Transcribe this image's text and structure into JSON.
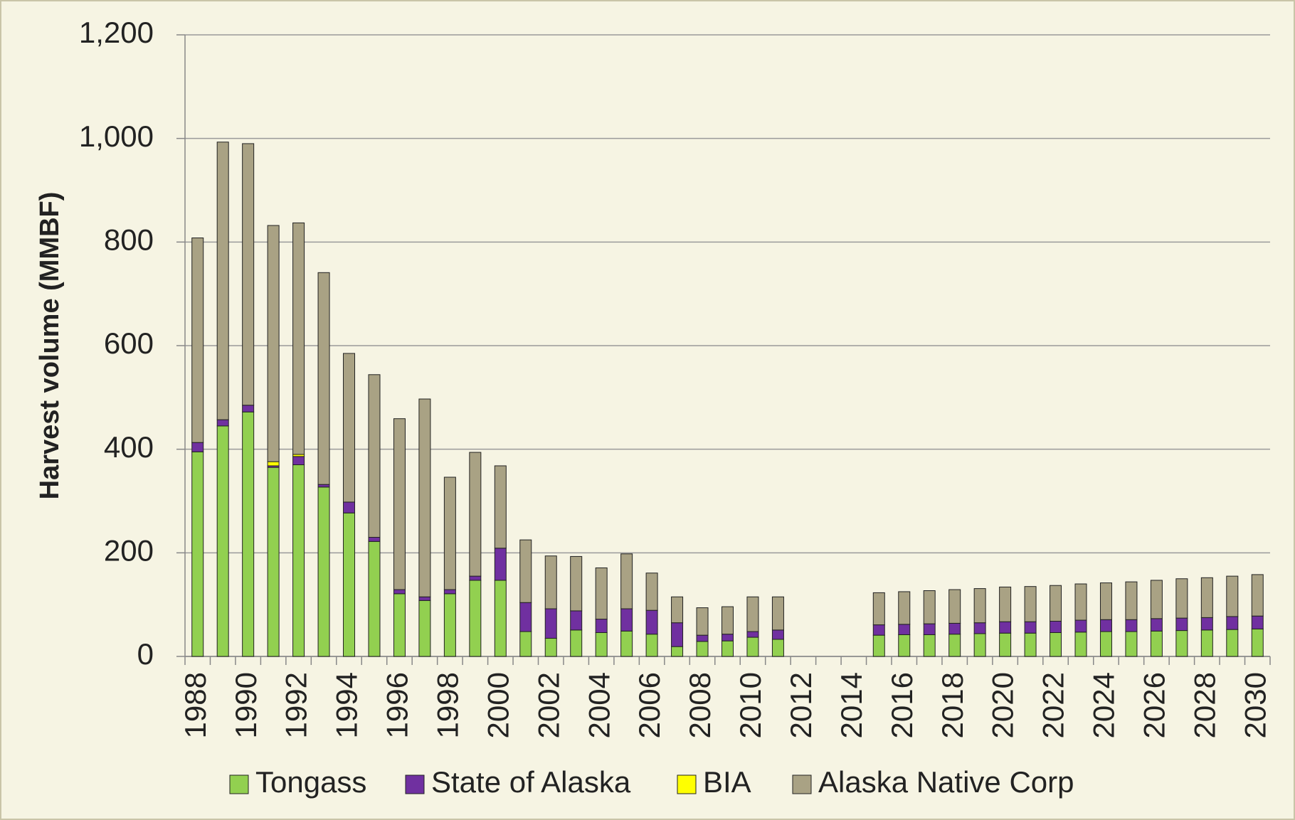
{
  "chart_data": {
    "type": "stacked_bar",
    "y_label": "Harvest volume (MMBF)",
    "categories": [
      "1988",
      null,
      "1990",
      null,
      "1992",
      null,
      "1994",
      null,
      "1996",
      null,
      "1998",
      null,
      "2000",
      null,
      "2002",
      null,
      "2004",
      null,
      "2006",
      null,
      "2008",
      null,
      "2010",
      null,
      "2012",
      null,
      "2014",
      null,
      "2016",
      null,
      "2018",
      null,
      "2020",
      null,
      "2022",
      null,
      "2024",
      null,
      "2026",
      null,
      "2028",
      null,
      "2030"
    ],
    "series": [
      {
        "name": "Tongass",
        "color": "#92d050",
        "values": [
          395,
          445,
          472,
          365,
          370,
          327,
          277,
          222,
          121,
          108,
          121,
          147,
          147,
          48,
          35,
          51,
          46,
          49,
          43,
          19,
          29,
          30,
          37,
          33,
          null,
          null,
          null,
          41,
          42,
          42,
          43,
          44,
          45,
          45,
          46,
          47,
          48,
          48,
          49,
          50,
          51,
          52,
          53
        ]
      },
      {
        "name": "State of Alaska",
        "color": "#7030a0",
        "values": [
          18,
          12,
          13,
          3,
          16,
          5,
          21,
          8,
          8,
          7,
          8,
          8,
          62,
          56,
          57,
          37,
          26,
          43,
          46,
          46,
          12,
          13,
          11,
          18,
          null,
          null,
          null,
          20,
          20,
          21,
          21,
          21,
          22,
          22,
          22,
          23,
          23,
          23,
          24,
          24,
          24,
          25,
          25
        ]
      },
      {
        "name": "BIA",
        "color": "#ffff00",
        "values": [
          0,
          0,
          0,
          8,
          4,
          0,
          0,
          0,
          0,
          0,
          0,
          0,
          0,
          0,
          0,
          0,
          0,
          0,
          0,
          0,
          0,
          0,
          0,
          0,
          null,
          null,
          null,
          0,
          0,
          0,
          0,
          0,
          0,
          0,
          0,
          0,
          0,
          0,
          0,
          0,
          0,
          0,
          0
        ]
      },
      {
        "name": "Alaska Native Corp",
        "color": "#a9a284",
        "values": [
          395,
          536,
          505,
          456,
          447,
          409,
          287,
          314,
          330,
          382,
          217,
          239,
          159,
          121,
          102,
          105,
          99,
          106,
          72,
          50,
          53,
          53,
          67,
          64,
          null,
          null,
          null,
          62,
          63,
          64,
          65,
          66,
          67,
          68,
          69,
          70,
          71,
          73,
          74,
          76,
          77,
          78,
          80
        ]
      }
    ],
    "ylim": [
      0,
      1200
    ],
    "yticks": [
      0,
      200,
      400,
      600,
      800,
      {
        "value": 1000,
        "label": "1,000"
      },
      {
        "value": 1200,
        "label": "1,200"
      }
    ],
    "grid": true,
    "legend": "bottom"
  }
}
